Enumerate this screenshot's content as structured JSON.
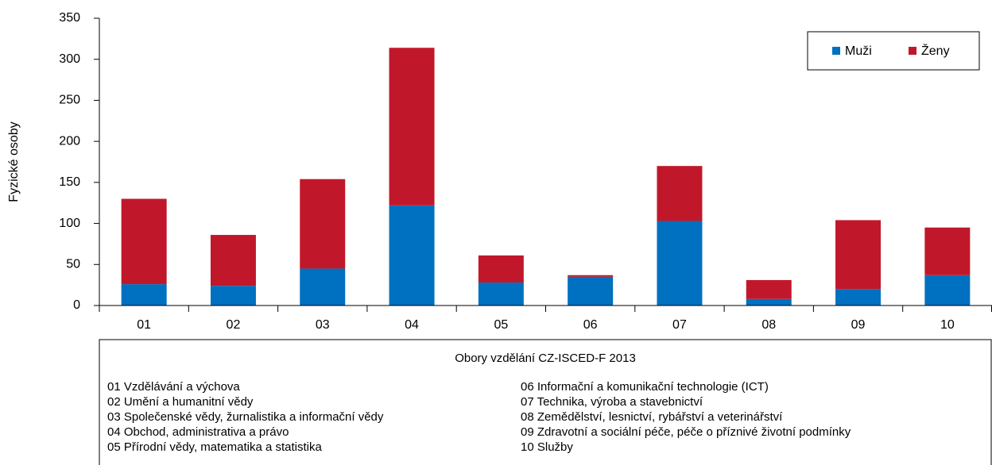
{
  "chart_data": {
    "type": "stacked_bar",
    "y_label": "Fyzické osoby",
    "categories": [
      "01",
      "02",
      "03",
      "04",
      "05",
      "06",
      "07",
      "08",
      "09",
      "10"
    ],
    "series": [
      {
        "name": "Muži",
        "color": "#0070c0",
        "values": [
          26,
          24,
          45,
          122,
          28,
          35,
          103,
          8,
          20,
          37
        ]
      },
      {
        "name": "Ženy",
        "color": "#c0182a",
        "values": [
          104,
          62,
          109,
          192,
          33,
          2,
          67,
          23,
          84,
          58
        ]
      }
    ],
    "ylim": [
      0,
      350
    ],
    "yticks": [
      0,
      50,
      100,
      150,
      200,
      250,
      300,
      350
    ],
    "grid": false,
    "legend": "top-right",
    "footnote": {
      "title": "Obory vzdělání CZ-ISCED-F  2013",
      "items": [
        "01 Vzdělávání a výchova",
        "02 Umění  a humanitní  vědy",
        "03 Společenské vědy, žurnalistika a informační vědy",
        "04 Obchod, administrativa a právo",
        "05 Přírodní  vědy, matematika a statistika",
        "06 Informační a komunikační technologie (ICT)",
        "07 Technika,  výroba a stavebnictví",
        "08 Zemědělství, lesnictví, rybářství a veterinářství",
        "09 Zdravotní a sociální péče, péče o příznivé životní podmínky",
        "10 Služby"
      ]
    }
  }
}
